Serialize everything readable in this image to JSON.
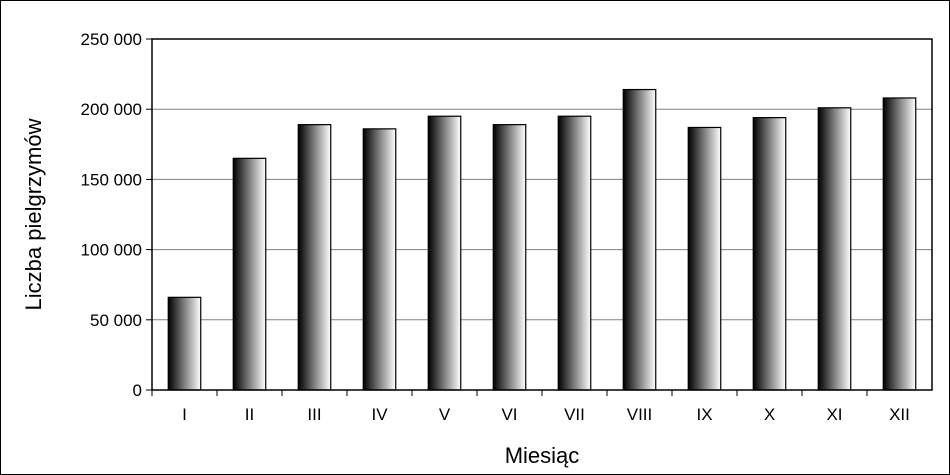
{
  "chart_data": {
    "type": "bar",
    "title": "",
    "xlabel": "Miesiąc",
    "ylabel": "Liczba pielgrzymów",
    "categories": [
      "I",
      "II",
      "III",
      "IV",
      "V",
      "VI",
      "VII",
      "VIII",
      "IX",
      "X",
      "XI",
      "XII"
    ],
    "values": [
      66000,
      165000,
      189000,
      186000,
      195000,
      189000,
      195000,
      214000,
      187000,
      194000,
      201000,
      208000
    ],
    "ylim": [
      0,
      250000
    ],
    "yticks": [
      0,
      50000,
      100000,
      150000,
      200000,
      250000
    ],
    "ytick_labels": [
      "0",
      "50 000",
      "100 000",
      "150 000",
      "200 000",
      "250 000"
    ],
    "grid": true,
    "legend": "none",
    "bar_gradient": [
      "#000000",
      "#ffffff"
    ],
    "gridline_color": "#808080",
    "axis_color": "#000000"
  }
}
